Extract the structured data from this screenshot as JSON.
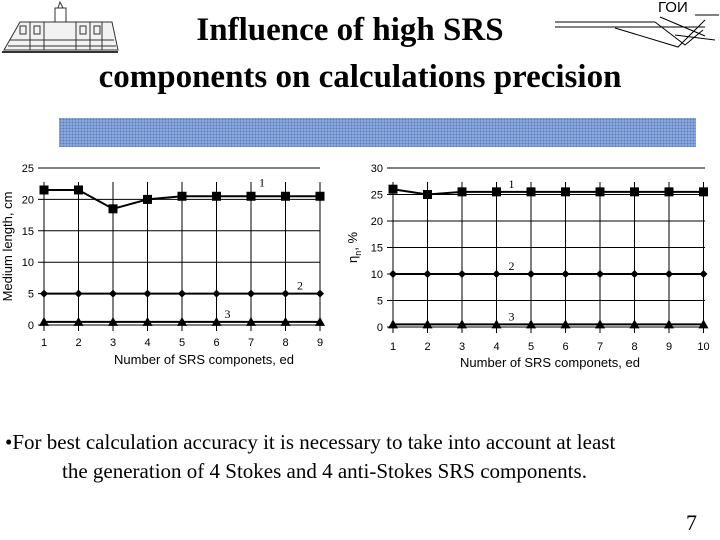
{
  "header": {
    "title_line1": "Influence of high SRS",
    "title_line2": "components on calculations precision",
    "org_mark": "ГОИ"
  },
  "chart_data": [
    {
      "type": "line",
      "ylabel": "Medium length, cm",
      "xlabel": "Number of SRS componets, ed",
      "x": [
        1,
        2,
        3,
        4,
        5,
        6,
        7,
        8,
        9
      ],
      "xticks": [
        "1",
        "2",
        "3",
        "4",
        "5",
        "6",
        "7",
        "8",
        "9"
      ],
      "ylim": [
        0,
        25
      ],
      "yticks": [
        "0",
        "5",
        "10",
        "15",
        "20",
        "25"
      ],
      "grid": true,
      "series": [
        {
          "name": "1",
          "marker": "square",
          "values": [
            21.5,
            21.5,
            18.5,
            20,
            20.5,
            20.5,
            20.5,
            20.5,
            20.5
          ]
        },
        {
          "name": "2",
          "marker": "diamond",
          "values": [
            5,
            5,
            5,
            5,
            5,
            5,
            5,
            5,
            5
          ]
        },
        {
          "name": "3",
          "marker": "triangle",
          "values": [
            0.5,
            0.5,
            0.5,
            0.5,
            0.5,
            0.5,
            0.5,
            0.5,
            0.5
          ]
        }
      ]
    },
    {
      "type": "line",
      "ylabel": "η",
      "ylabel_sub": "n",
      "ylabel_unit": ", %",
      "xlabel": "Number of SRS componets, ed",
      "x": [
        1,
        2,
        3,
        4,
        5,
        6,
        7,
        8,
        9,
        10
      ],
      "xticks": [
        "1",
        "2",
        "3",
        "4",
        "5",
        "6",
        "7",
        "8",
        "9",
        "10"
      ],
      "ylim": [
        0,
        30
      ],
      "yticks": [
        "0",
        "5",
        "10",
        "15",
        "20",
        "25",
        "30"
      ],
      "grid": true,
      "series": [
        {
          "name": "1",
          "marker": "square",
          "values": [
            26,
            25,
            25.5,
            25.5,
            25.5,
            25.5,
            25.5,
            25.5,
            25.5,
            25.5
          ]
        },
        {
          "name": "2",
          "marker": "diamond",
          "values": [
            10,
            10,
            10,
            10,
            10,
            10,
            10,
            10,
            10,
            10
          ]
        },
        {
          "name": "3",
          "marker": "triangle",
          "values": [
            0.5,
            0.5,
            0.5,
            0.5,
            0.5,
            0.5,
            0.5,
            0.5,
            0.5,
            0.5
          ]
        }
      ]
    }
  ],
  "body": {
    "bullet_mark": "•",
    "bullet_line1": "For best calculation accuracy it is necessary to take into account at least",
    "bullet_line2": "the generation of 4 Stokes and 4 anti-Stokes SRS components."
  },
  "footer": {
    "page_number": "7"
  }
}
